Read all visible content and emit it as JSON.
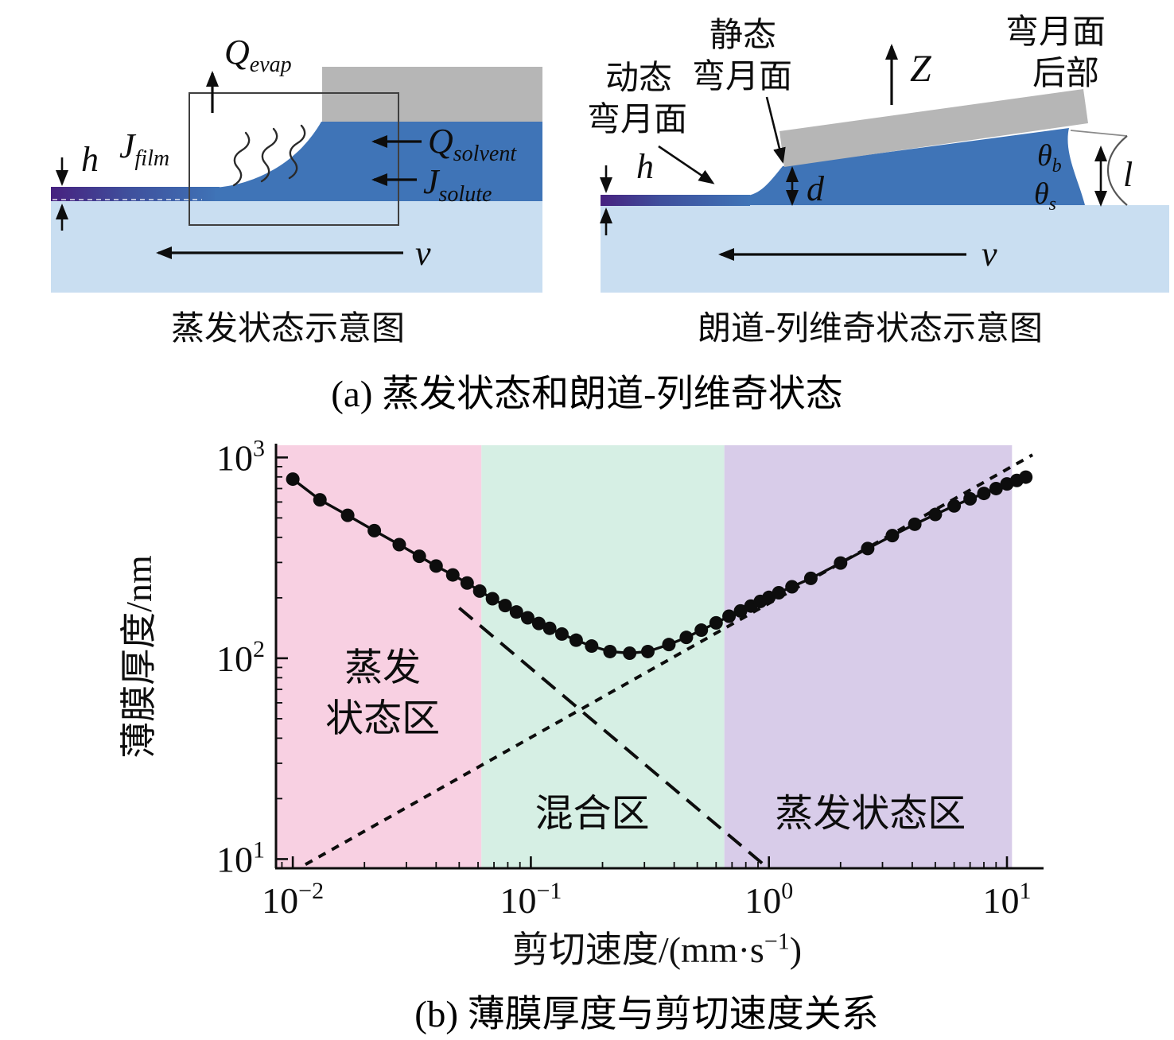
{
  "panel_a": {
    "caption": "(a) 蒸发状态和朗道-列维奇状态",
    "left": {
      "caption": "蒸发状态示意图",
      "labels": {
        "q_evap": {
          "sym": "Q",
          "sub": "evap"
        },
        "j_film": {
          "sym": "J",
          "sub": "film"
        },
        "h": "h",
        "q_solvent": {
          "sym": "Q",
          "sub": "solvent"
        },
        "j_solute": {
          "sym": "J",
          "sub": "solute"
        },
        "v": "v"
      }
    },
    "right": {
      "caption": "朗道-列维奇状态示意图",
      "labels": {
        "dynamic_meniscus": [
          "动态",
          "弯月面"
        ],
        "static_meniscus": [
          "静态",
          "弯月面"
        ],
        "z": "Z",
        "meniscus_rear": [
          "弯月面",
          "后部"
        ],
        "h": "h",
        "d": "d",
        "l": "l",
        "theta_b": {
          "sym": "θ",
          "sub": "b"
        },
        "theta_s": {
          "sym": "θ",
          "sub": "s"
        },
        "v": "v"
      }
    },
    "colors": {
      "substrate": "#c9def1",
      "liquid": "#3f74b7",
      "film_purple": "#47217f",
      "blade_gray": "#b6b6b6"
    }
  },
  "panel_b": {
    "caption": "(b) 薄膜厚度与剪切速度关系"
  },
  "chart_data": {
    "type": "scatter",
    "title": "",
    "xlabel_parts": {
      "prefix": "剪切速度/(mm·s",
      "sup": "−1",
      "suffix": ")"
    },
    "ylabel": "薄膜厚度/nm",
    "x_scale": "log",
    "y_scale": "log",
    "xlim": [
      0.0085,
      13.5
    ],
    "ylim": [
      9,
      1150
    ],
    "grid": false,
    "xticks": [
      {
        "base": "10",
        "exp": "−2",
        "value": 0.01
      },
      {
        "base": "10",
        "exp": "−1",
        "value": 0.1
      },
      {
        "base": "10",
        "exp": "0",
        "value": 1
      },
      {
        "base": "10",
        "exp": "1",
        "value": 10
      }
    ],
    "yticks": [
      {
        "base": "10",
        "exp": "1",
        "value": 10
      },
      {
        "base": "10",
        "exp": "2",
        "value": 100
      },
      {
        "base": "10",
        "exp": "3",
        "value": 1000
      }
    ],
    "regions": [
      {
        "label_lines": [
          "蒸发",
          "状态区"
        ],
        "x0": 0.0085,
        "x1": 0.062,
        "color": "#f8d0e2",
        "label_fx": 0.14,
        "label_fy": 0.555
      },
      {
        "label_lines": [
          "混合区"
        ],
        "x0": 0.062,
        "x1": 0.65,
        "color": "#d6efe4",
        "label_fx": 0.415,
        "label_fy": 0.9
      },
      {
        "label_lines": [
          "蒸发状态区"
        ],
        "x0": 0.65,
        "x1": 10.5,
        "color": "#d8cce9",
        "label_fx": 0.78,
        "label_fy": 0.9
      }
    ],
    "series": [
      {
        "name": "薄膜厚度数据点",
        "type": "scatter",
        "color": "#0d0d0d",
        "marker_radius": 8.5,
        "draw_line": true,
        "line_width": 3.4,
        "points": [
          [
            0.01,
            780
          ],
          [
            0.013,
            615
          ],
          [
            0.017,
            515
          ],
          [
            0.022,
            432
          ],
          [
            0.028,
            368
          ],
          [
            0.034,
            322
          ],
          [
            0.04,
            288
          ],
          [
            0.047,
            260
          ],
          [
            0.054,
            237
          ],
          [
            0.061,
            216
          ],
          [
            0.069,
            198
          ],
          [
            0.078,
            183
          ],
          [
            0.087,
            170
          ],
          [
            0.097,
            159
          ],
          [
            0.108,
            149
          ],
          [
            0.12,
            141
          ],
          [
            0.135,
            132
          ],
          [
            0.155,
            123
          ],
          [
            0.18,
            115
          ],
          [
            0.215,
            108
          ],
          [
            0.26,
            106
          ],
          [
            0.31,
            108
          ],
          [
            0.38,
            117
          ],
          [
            0.45,
            127
          ],
          [
            0.52,
            138
          ],
          [
            0.6,
            150
          ],
          [
            0.68,
            162
          ],
          [
            0.76,
            172
          ],
          [
            0.84,
            182
          ],
          [
            0.92,
            192
          ],
          [
            1.0,
            201
          ],
          [
            1.1,
            212
          ],
          [
            1.25,
            227
          ],
          [
            1.5,
            250
          ],
          [
            2.0,
            298
          ],
          [
            2.6,
            352
          ],
          [
            3.3,
            408
          ],
          [
            4.1,
            465
          ],
          [
            5.0,
            520
          ],
          [
            6.0,
            574
          ],
          [
            7.0,
            622
          ],
          [
            8.0,
            662
          ],
          [
            9.0,
            700
          ],
          [
            10.0,
            738
          ],
          [
            11.0,
            768
          ],
          [
            12.0,
            798
          ]
        ]
      },
      {
        "name": "蒸发状态渐近线",
        "type": "line",
        "style": "long-dash",
        "color": "#0d0d0d",
        "width": 4,
        "points": [
          [
            0.05,
            178
          ],
          [
            0.95,
            9.4
          ]
        ]
      },
      {
        "name": "朗道-列维奇渐近线",
        "type": "line",
        "style": "short-dash",
        "color": "#0d0d0d",
        "width": 4,
        "points": [
          [
            0.0113,
            9.4
          ],
          [
            12.8,
            1030
          ]
        ]
      }
    ]
  }
}
